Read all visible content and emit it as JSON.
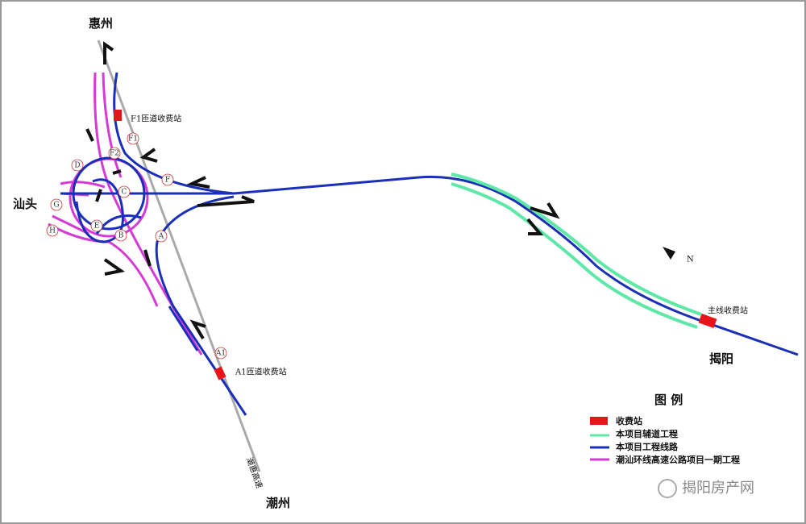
{
  "places": {
    "north": "惠州",
    "west": "汕头",
    "south": "潮州",
    "east": "揭阳"
  },
  "toll_stations": {
    "f1": "F1匝道收费站",
    "a1": "A1匝道收费站",
    "main": "主线收费站"
  },
  "ramp_labels": [
    "D",
    "G",
    "H",
    "F1",
    "F2",
    "F",
    "C",
    "E",
    "B",
    "A",
    "A1"
  ],
  "road_label": "潮惠高速",
  "compass": "N",
  "legend": {
    "title": "图 例",
    "items": [
      "收费站",
      "本项目辅道工程",
      "本项目工程线路",
      "潮汕环线高速公路项目一期工程"
    ]
  },
  "watermark": "揭阳房产网"
}
